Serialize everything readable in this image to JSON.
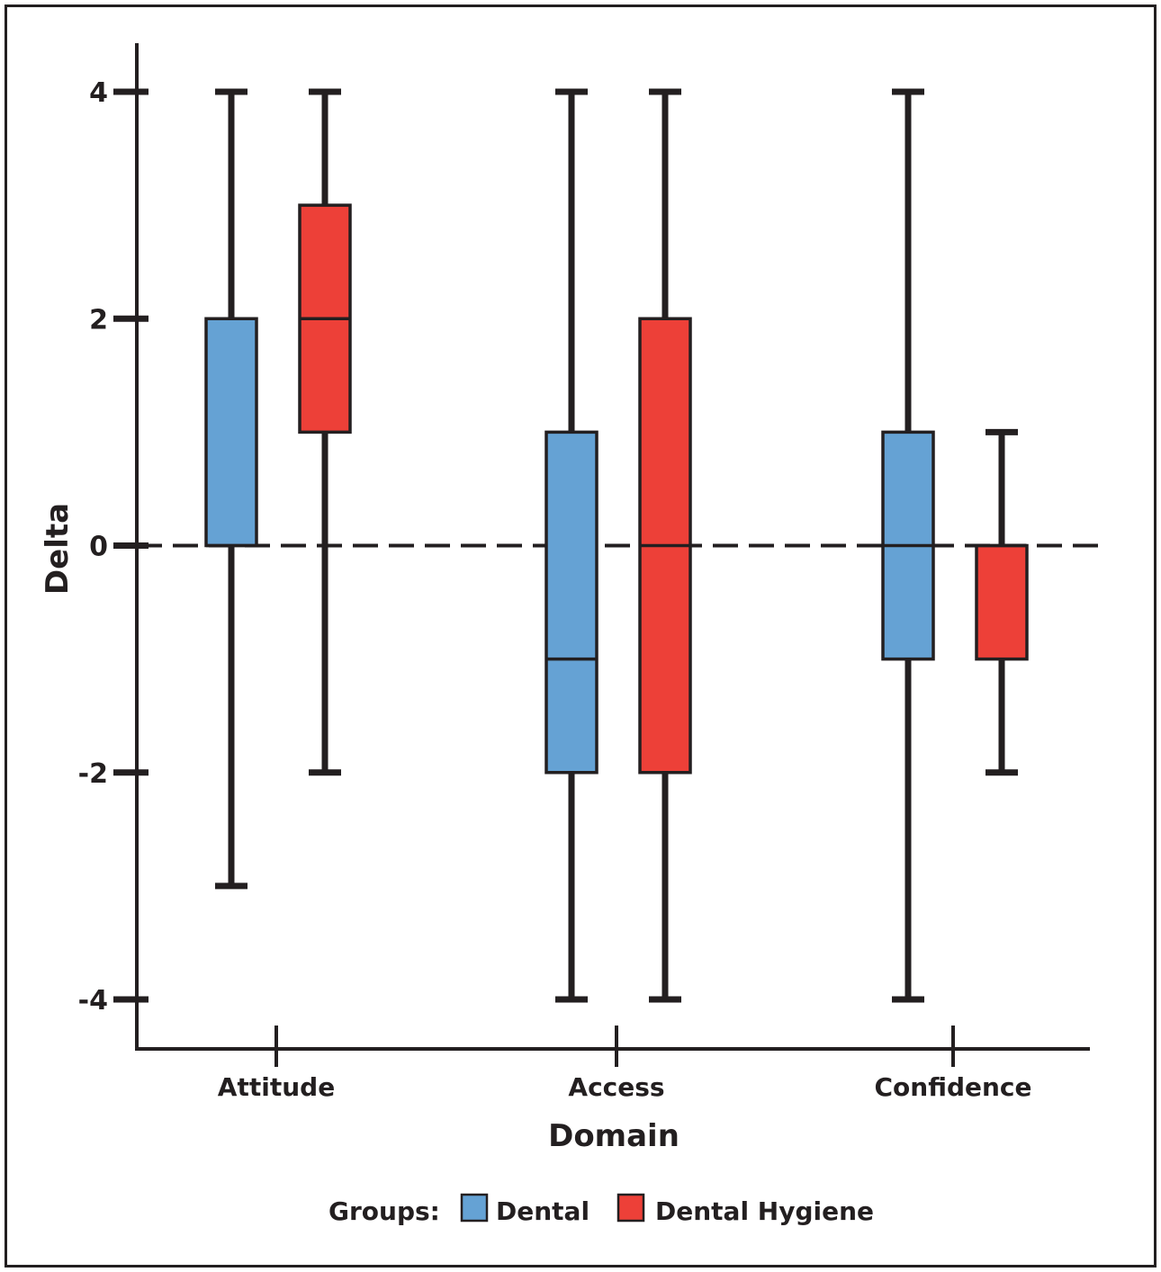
{
  "chart_data": {
    "type": "boxplot",
    "title": "",
    "xlabel": "Domain",
    "ylabel": "Delta",
    "ylim": [
      -4,
      4
    ],
    "yticks": [
      4,
      2,
      0,
      -2,
      -4
    ],
    "ytick_labels": [
      "4",
      "2",
      "0",
      "-2",
      "-4"
    ],
    "categories": [
      "Attitude",
      "Access",
      "Confidence"
    ],
    "reference_line": {
      "y": 0,
      "style": "dashed"
    },
    "legend": {
      "title": "Groups:",
      "position": "bottom-center"
    },
    "series": [
      {
        "name": "Dental",
        "color": "#65a2d4",
        "boxes": [
          {
            "category": "Attitude",
            "min": -3,
            "q1": 0,
            "median": 0,
            "q3": 2,
            "max": 4
          },
          {
            "category": "Access",
            "min": -4,
            "q1": -2,
            "median": -1,
            "q3": 1,
            "max": 4
          },
          {
            "category": "Confidence",
            "min": -4,
            "q1": -1,
            "median": 0,
            "q3": 1,
            "max": 4
          }
        ]
      },
      {
        "name": "Dental Hygiene",
        "color": "#ed4038",
        "boxes": [
          {
            "category": "Attitude",
            "min": -2,
            "q1": 1,
            "median": 2,
            "q3": 3,
            "max": 4
          },
          {
            "category": "Access",
            "min": -4,
            "q1": -2,
            "median": 0,
            "q3": 2,
            "max": 4
          },
          {
            "category": "Confidence",
            "min": -2,
            "q1": -1,
            "median": 0,
            "q3": 0,
            "max": 1
          }
        ]
      }
    ]
  }
}
